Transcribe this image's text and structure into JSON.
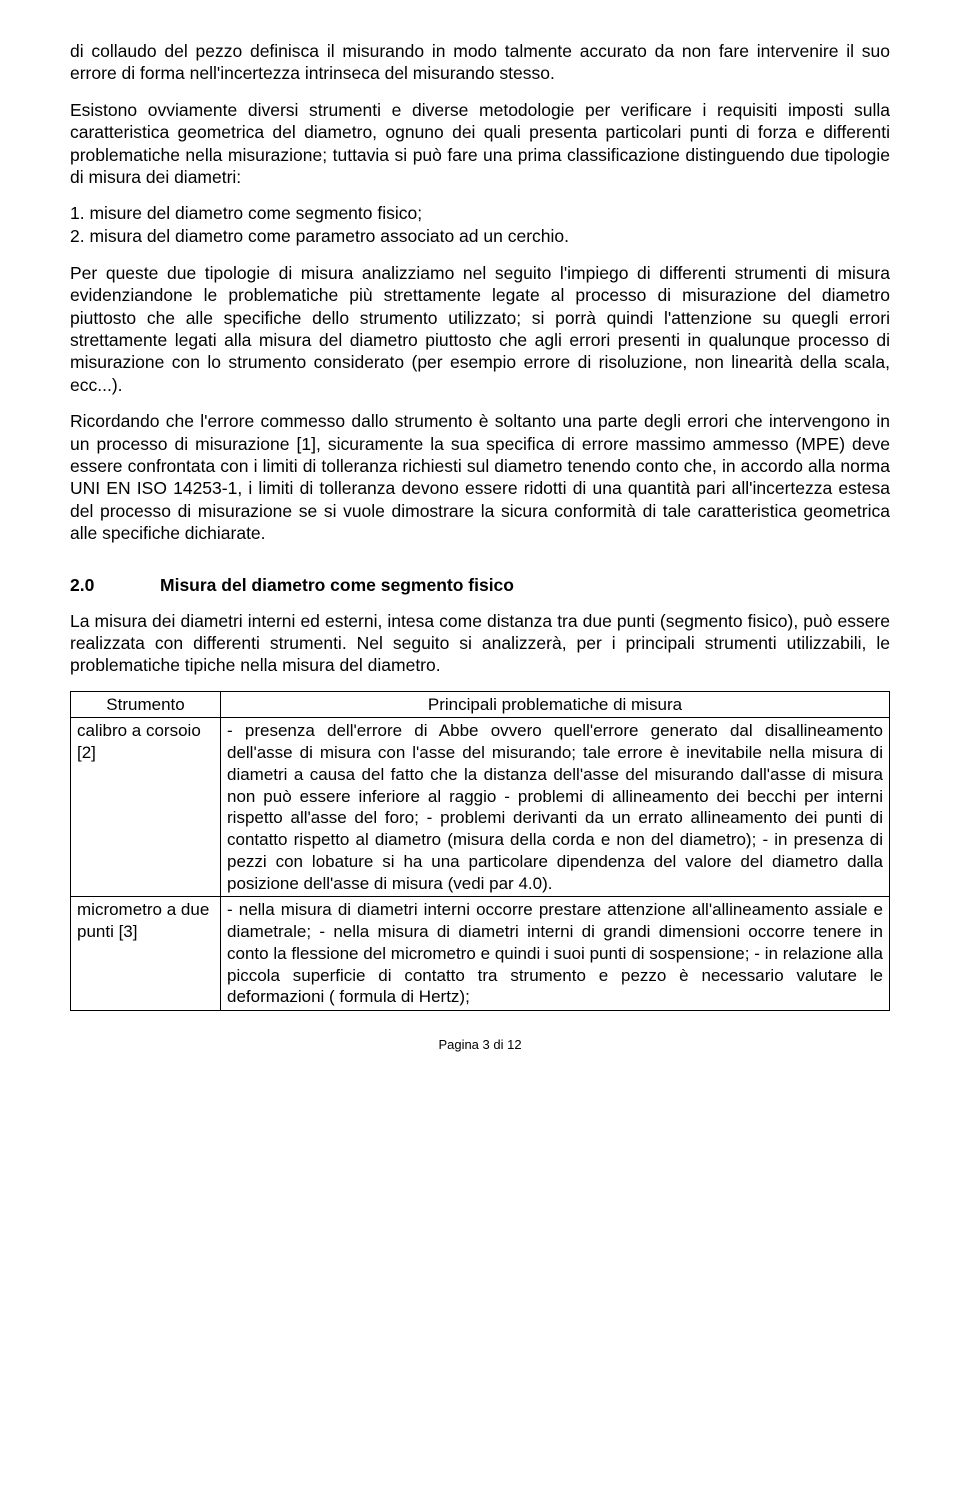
{
  "colors": {
    "text": "#000000",
    "background": "#ffffff",
    "border": "#000000"
  },
  "typography": {
    "body_font_family": "Arial, Helvetica, sans-serif",
    "body_font_size_pt": 13,
    "body_line_height": 1.28,
    "heading_font_weight": "bold"
  },
  "paragraphs": {
    "p0": "di collaudo del pezzo definisca il misurando in modo talmente accurato da non fare intervenire il suo errore di forma nell'incertezza intrinseca del misurando stesso.",
    "p1": "Esistono ovviamente diversi strumenti e diverse metodologie per verificare i requisiti imposti sulla caratteristica geometrica del diametro, ognuno dei quali presenta particolari punti di forza e differenti problematiche nella misurazione; tuttavia si può fare una prima classificazione distinguendo due tipologie di misura dei diametri:",
    "p2": "Per queste due tipologie di misura analizziamo nel seguito l'impiego di differenti strumenti di misura evidenziandone le problematiche più strettamente legate al processo di misurazione del diametro piuttosto che alle specifiche dello strumento utilizzato; si porrà quindi l'attenzione su quegli errori strettamente legati alla misura del diametro piuttosto che agli errori presenti in qualunque processo di misurazione con lo strumento considerato (per esempio errore di risoluzione, non linearità della scala, ecc...).",
    "p3": "Ricordando che l'errore commesso dallo strumento è soltanto una parte degli errori che intervengono in un processo di misurazione [1], sicuramente la sua specifica di errore massimo ammesso (MPE) deve essere confrontata con i limiti di tolleranza richiesti sul diametro tenendo conto che, in accordo alla norma UNI EN ISO 14253-1, i limiti di tolleranza devono essere ridotti di una quantità pari all'incertezza estesa del processo di misurazione se si vuole dimostrare la sicura conformità di tale caratteristica geometrica alle specifiche dichiarate.",
    "p4": "La misura dei diametri interni ed esterni, intesa come distanza tra due punti (segmento fisico),  può essere realizzata con differenti strumenti. Nel seguito si analizzerà, per i principali strumenti utilizzabili, le problematiche tipiche nella misura del diametro."
  },
  "list": {
    "item1": "1. misure del diametro come segmento fisico;",
    "item2": "2. misura del diametro come parametro associato ad un cerchio."
  },
  "section": {
    "number": "2.0",
    "title": "Misura del diametro come segmento fisico"
  },
  "table": {
    "header": {
      "col1": "Strumento",
      "col2": "Principali problematiche di misura"
    },
    "rows": [
      {
        "instrument": "calibro a corsoio [2]",
        "problems": "- presenza dell'errore di Abbe ovvero quell'errore generato dal disallineamento dell'asse di misura con l'asse del misurando; tale errore è inevitabile nella misura di diametri a causa del fatto che la distanza dell'asse del misurando dall'asse di misura non può essere inferiore al raggio\n- problemi di allineamento dei becchi per interni rispetto  all'asse del foro;\n- problemi derivanti da un errato allineamento dei punti di contatto rispetto al diametro (misura della corda e non del diametro);\n- in presenza di pezzi con lobature si ha una particolare dipendenza del valore del diametro dalla posizione dell'asse di misura (vedi par 4.0)."
      },
      {
        "instrument": "micrometro a due punti [3]",
        "problems": "- nella misura di diametri interni occorre prestare attenzione all'allineamento assiale e diametrale;\n- nella misura di diametri interni di grandi dimensioni occorre tenere in conto la flessione del micrometro e quindi i suoi punti di sospensione;\n- in relazione alla piccola superficie di contatto tra strumento e pezzo è necessario valutare le deformazioni ( formula di Hertz);"
      }
    ]
  },
  "footer": "Pagina 3 di 12"
}
